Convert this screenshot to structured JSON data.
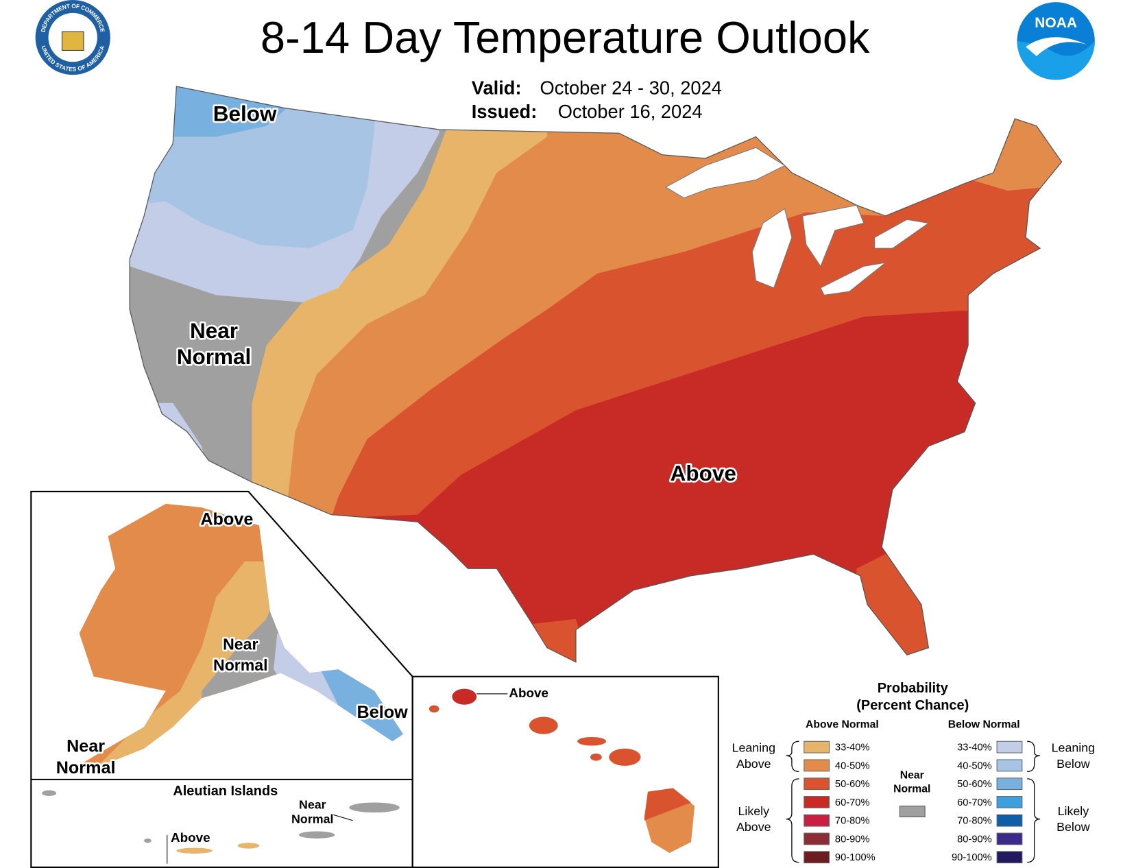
{
  "header": {
    "title": "8-14 Day Temperature Outlook",
    "valid_label": "Valid:",
    "valid_date": "October 24 - 30, 2024",
    "issued_label": "Issued:",
    "issued_date": "October 16, 2024"
  },
  "logos": {
    "seal_top": "DEPARTMENT OF COMMERCE",
    "seal_bottom": "UNITED STATES OF AMERICA",
    "noaa": "NOAA"
  },
  "map_labels": {
    "conus": {
      "below": "Below",
      "near_normal": [
        "Near",
        "Normal"
      ],
      "above": "Above"
    },
    "alaska": {
      "above": "Above",
      "near_normal_east": [
        "Near",
        "Normal"
      ],
      "below": "Below",
      "near_normal_west": [
        "Near",
        "Normal"
      ]
    },
    "aleutians": {
      "title": "Aleutian Islands",
      "above": "Above",
      "near_normal": [
        "Near",
        "Normal"
      ]
    },
    "hawaii": {
      "above": "Above"
    }
  },
  "legend": {
    "title": "Probability",
    "subtitle": "(Percent Chance)",
    "above_heading": "Above Normal",
    "below_heading": "Below Normal",
    "leaning_above": [
      "Leaning",
      "Above"
    ],
    "likely_above": [
      "Likely",
      "Above"
    ],
    "leaning_below": [
      "Leaning",
      "Below"
    ],
    "likely_below": [
      "Likely",
      "Below"
    ],
    "near_normal": {
      "label": [
        "Near",
        "Normal"
      ],
      "color": "#a0a0a0"
    },
    "above": [
      {
        "label": "33-40%",
        "color": "#e8b46a"
      },
      {
        "label": "40-50%",
        "color": "#e38b4a"
      },
      {
        "label": "50-60%",
        "color": "#d9532f"
      },
      {
        "label": "60-70%",
        "color": "#c82a26"
      },
      {
        "label": "70-80%",
        "color": "#c91f42"
      },
      {
        "label": "80-90%",
        "color": "#8e2b36"
      },
      {
        "label": "90-100%",
        "color": "#6b1d1f"
      }
    ],
    "below": [
      {
        "label": "33-40%",
        "color": "#c4cde8"
      },
      {
        "label": "40-50%",
        "color": "#a8c4e4"
      },
      {
        "label": "50-60%",
        "color": "#78b0e0"
      },
      {
        "label": "60-70%",
        "color": "#3d9fdc"
      },
      {
        "label": "70-80%",
        "color": "#0f5ea9"
      },
      {
        "label": "80-90%",
        "color": "#3c2a8a"
      },
      {
        "label": "90-100%",
        "color": "#22195e"
      }
    ]
  }
}
